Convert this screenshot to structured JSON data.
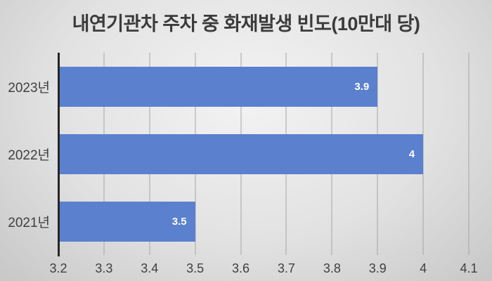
{
  "chart_data": {
    "type": "bar",
    "orientation": "horizontal",
    "title": "내연기관차 주차 중 화재발생 빈도(10만대 당)",
    "categories": [
      "2023년",
      "2022년",
      "2021년"
    ],
    "values": [
      3.9,
      4,
      3.5
    ],
    "value_labels": [
      "3.9",
      "4",
      "3.5"
    ],
    "xlabel": "",
    "ylabel": "",
    "xlim": [
      3.2,
      4.1
    ],
    "x_tick_values": [
      3.2,
      3.3,
      3.4,
      3.5,
      3.6,
      3.7,
      3.8,
      3.9,
      4,
      4.1
    ],
    "x_tick_labels": [
      "3.2",
      "3.3",
      "3.4",
      "3.5",
      "3.6",
      "3.7",
      "3.8",
      "3.9",
      "4",
      "4.1"
    ],
    "grid": true,
    "legend": false,
    "colors": {
      "bar": "#5b80ce",
      "value_label": "#ffffff",
      "gridline": "#a6a6a6",
      "axis_line": "#262626",
      "tick_label": "#404040",
      "title": "#3b3b3b",
      "background_center": "#f3f3f3",
      "background_edge": "#c7c7c7"
    }
  }
}
